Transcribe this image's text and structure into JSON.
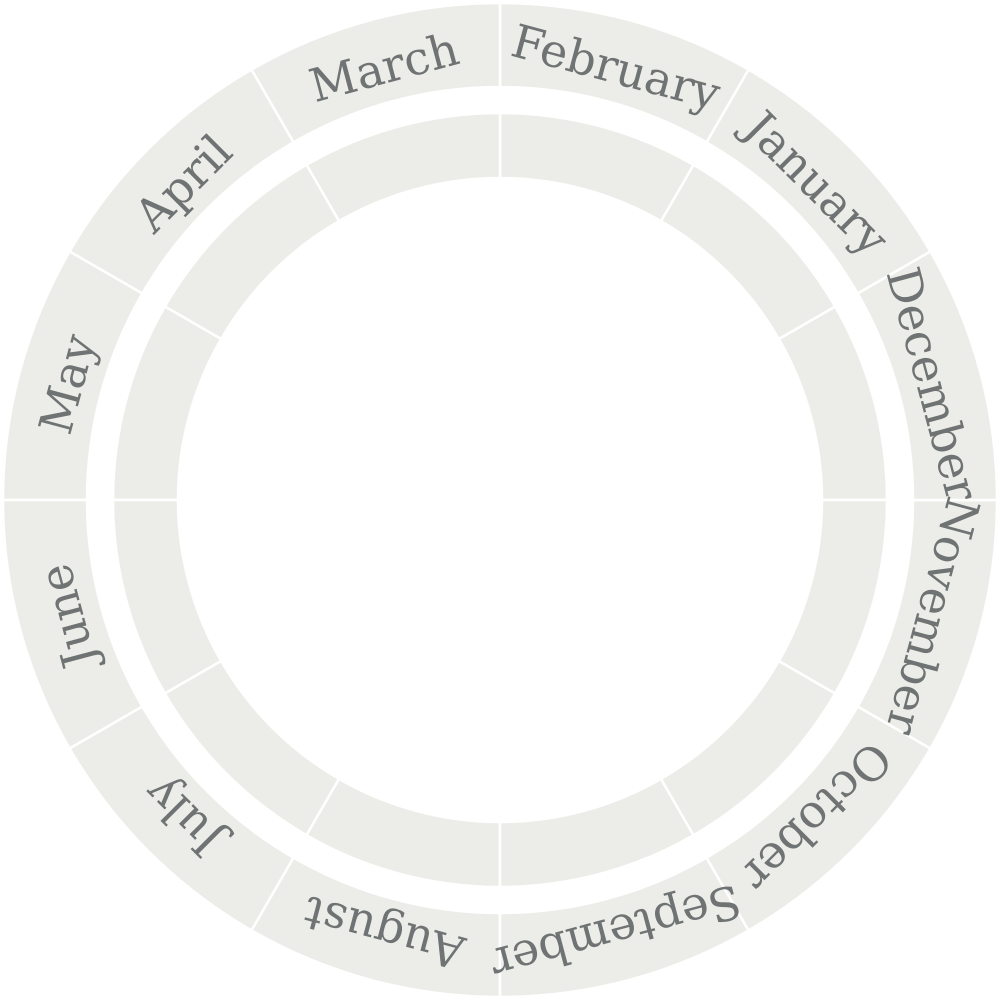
{
  "wheel": {
    "colors": {
      "segment": "#ecede8",
      "separator": "#ffffff",
      "label": "#6f7373"
    },
    "outer_ring": {
      "months": [
        "January",
        "February",
        "March",
        "April",
        "May",
        "June",
        "July",
        "August",
        "September",
        "October",
        "November",
        "December"
      ]
    },
    "inner_ring": {
      "segment_count": 12
    }
  }
}
